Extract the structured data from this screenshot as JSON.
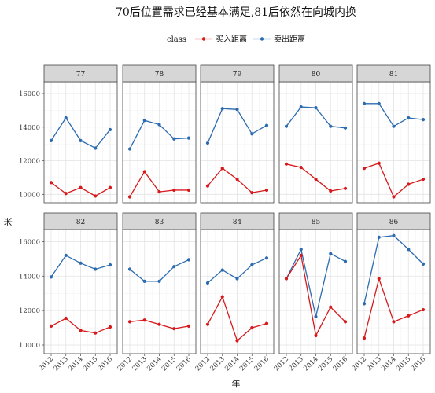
{
  "chart_data": {
    "type": "line",
    "title": "70后位置需求已经基本满足,81后依然在向城内换",
    "xlabel": "年",
    "ylabel": "米",
    "legend": {
      "title": "class",
      "placement": "top"
    },
    "x": [
      "2012",
      "2013",
      "2014",
      "2015",
      "2016"
    ],
    "ylim": [
      9500,
      16700
    ],
    "yticks": [
      10000,
      12000,
      14000,
      16000
    ],
    "colors": {
      "买入距离": "#d7191c",
      "卖出距离": "#2c6bb0"
    },
    "series_names": [
      "买入距离",
      "卖出距离"
    ],
    "facets": [
      {
        "label": "77",
        "buy": [
          10700,
          10050,
          10400,
          9900,
          10400
        ],
        "sell": [
          13200,
          14550,
          13200,
          12750,
          13850
        ]
      },
      {
        "label": "78",
        "buy": [
          9850,
          11350,
          10150,
          10250,
          10250
        ],
        "sell": [
          12700,
          14400,
          14150,
          13300,
          13350
        ]
      },
      {
        "label": "79",
        "buy": [
          10500,
          11550,
          10900,
          10100,
          10250
        ],
        "sell": [
          13050,
          15100,
          15050,
          13600,
          14100
        ]
      },
      {
        "label": "80",
        "buy": [
          11800,
          11600,
          10900,
          10200,
          10350
        ],
        "sell": [
          14050,
          15200,
          15150,
          14050,
          13950
        ]
      },
      {
        "label": "81",
        "buy": [
          11550,
          11850,
          9850,
          10600,
          10900
        ],
        "sell": [
          15400,
          15400,
          14050,
          14550,
          14450
        ]
      },
      {
        "label": "82",
        "buy": [
          11100,
          11550,
          10850,
          10700,
          11050
        ],
        "sell": [
          13950,
          15200,
          14750,
          14400,
          14650
        ]
      },
      {
        "label": "83",
        "buy": [
          11350,
          11450,
          11200,
          10950,
          11100
        ],
        "sell": [
          14400,
          13700,
          13700,
          14550,
          14950
        ]
      },
      {
        "label": "84",
        "buy": [
          11200,
          12800,
          10250,
          11000,
          11250
        ],
        "sell": [
          13600,
          14350,
          13850,
          14650,
          15050
        ]
      },
      {
        "label": "85",
        "buy": [
          13850,
          15200,
          10550,
          12200,
          11350
        ],
        "sell": [
          13850,
          15550,
          11650,
          15300,
          14850
        ]
      },
      {
        "label": "86",
        "buy": [
          10400,
          13850,
          11350,
          11700,
          12050
        ],
        "sell": [
          12400,
          16250,
          16350,
          15550,
          14700
        ]
      }
    ]
  }
}
